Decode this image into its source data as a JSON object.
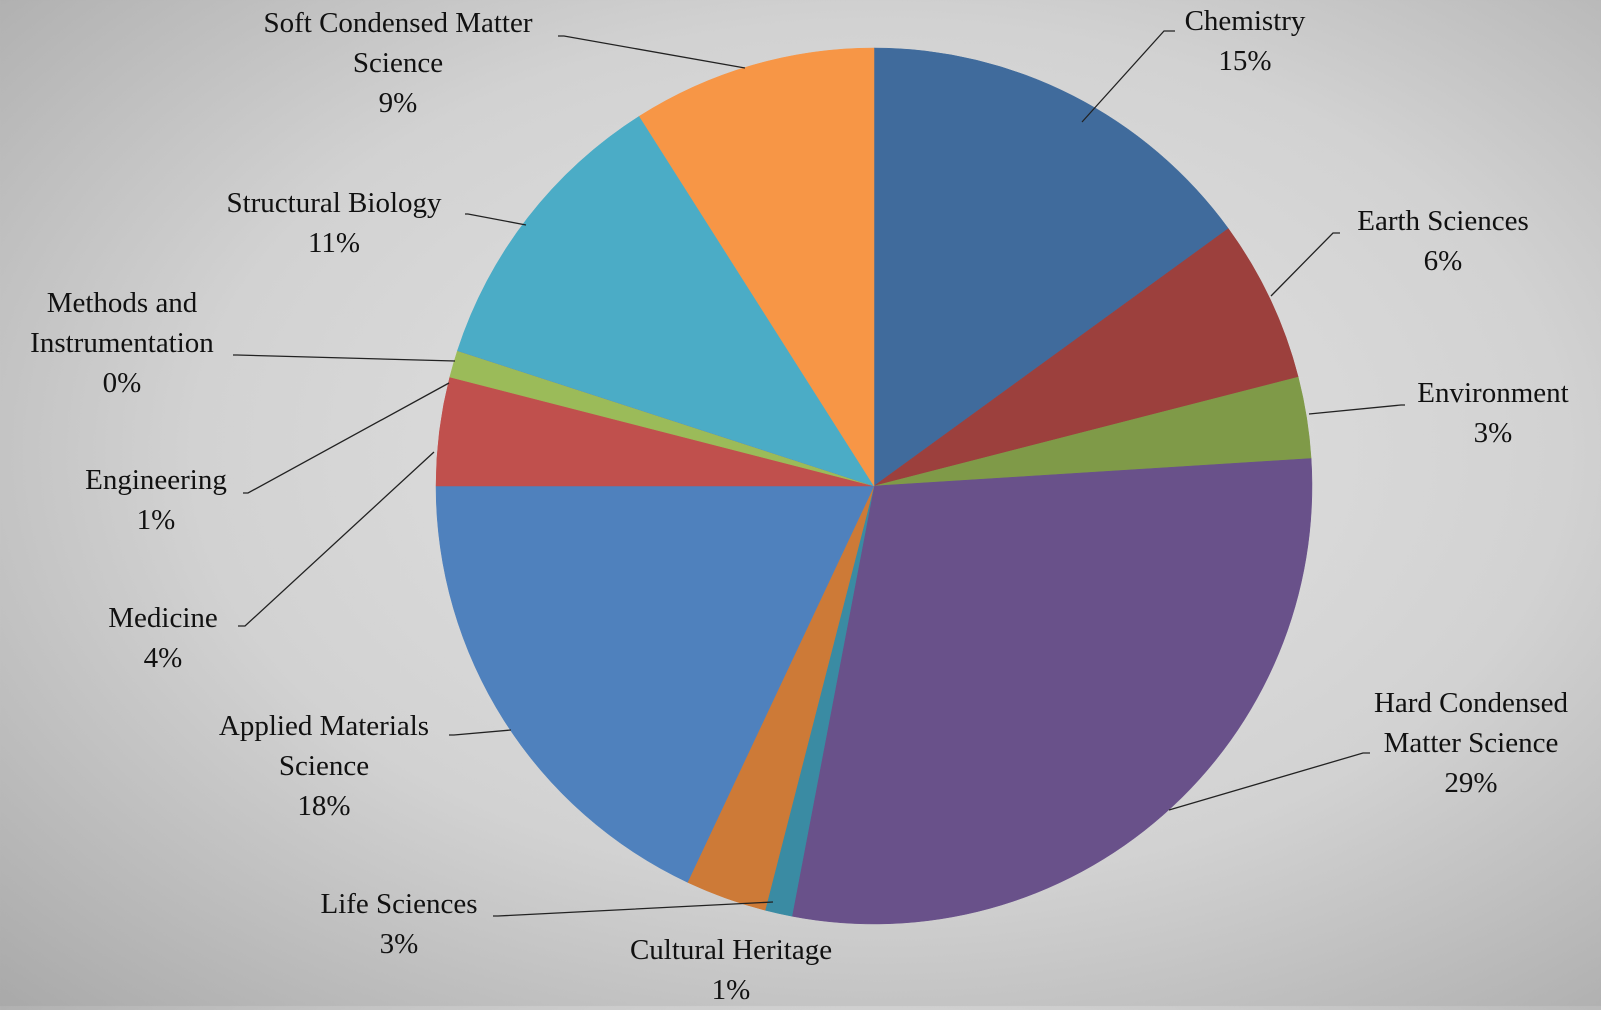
{
  "chart_data": {
    "type": "pie",
    "categories": [
      "Chemistry",
      "Earth Sciences",
      "Environment",
      "Hard Condensed Matter Science",
      "Cultural Heritage",
      "Life Sciences",
      "Applied Materials Science",
      "Medicine",
      "Engineering",
      "Methods and Instrumentation",
      "Structural Biology",
      "Soft Condensed Matter Science"
    ],
    "values": [
      15,
      6,
      3,
      29,
      1,
      3,
      18,
      4,
      1,
      0,
      11,
      9
    ],
    "value_labels": [
      "15%",
      "6%",
      "3%",
      "29%",
      "1%",
      "3%",
      "18%",
      "4%",
      "1%",
      "0%",
      "11%",
      "9%"
    ],
    "colors": [
      "#406b9c",
      "#9c403d",
      "#7f9a48",
      "#69518a",
      "#3a8ba3",
      "#cd7a37",
      "#4f81bd",
      "#c0504d",
      "#9bbb59",
      "#8064a2",
      "#4bacc6",
      "#f79646"
    ]
  }
}
